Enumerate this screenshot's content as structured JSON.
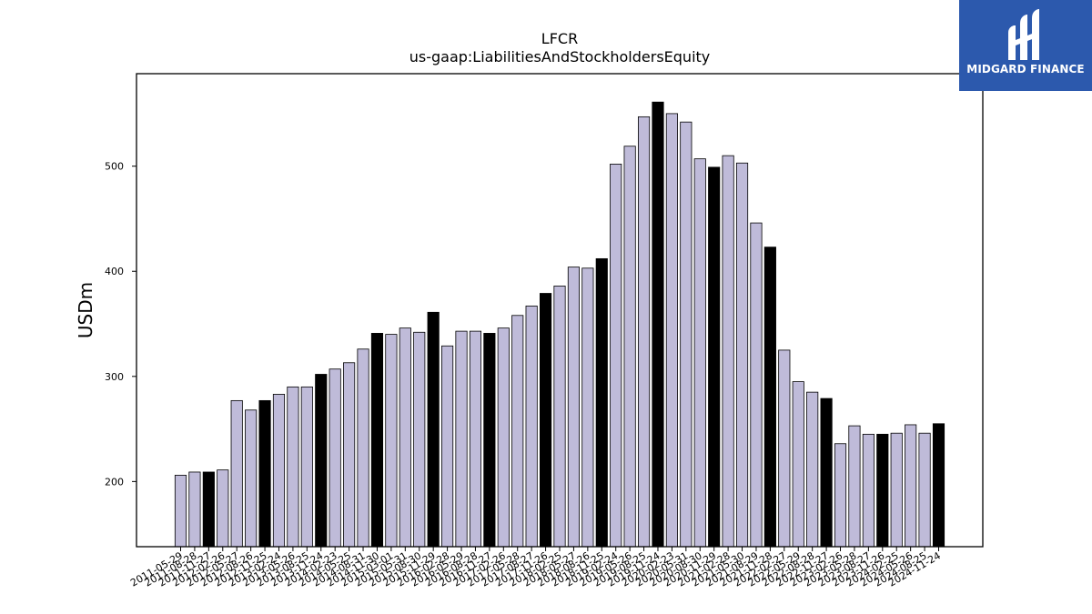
{
  "brand": {
    "name": "MIDGARD FINANCE",
    "logo_icon": "midgard-logo-icon",
    "color": "#2c59ad"
  },
  "chart_data": {
    "type": "bar",
    "title": "LFCR",
    "subtitle": "us-gaap:LiabilitiesAndStockholdersEquity",
    "xlabel": "",
    "ylabel": "USDm",
    "ylim": [
      138,
      588
    ],
    "yticks": [
      200,
      300,
      400,
      500
    ],
    "grid": false,
    "legend": "none",
    "bar_color": "#bfbbd9",
    "highlight_color": "#000000",
    "categories": [
      "2011-05-29",
      "2011-08-28",
      "2011-11-27",
      "2012-02-26",
      "2012-05-27",
      "2012-08-26",
      "2012-11-25",
      "2013-02-24",
      "2013-05-26",
      "2013-08-25",
      "2013-11-24",
      "2014-02-23",
      "2014-05-25",
      "2014-08-31",
      "2014-11-30",
      "2015-03-01",
      "2015-05-31",
      "2015-08-30",
      "2015-11-29",
      "2016-02-28",
      "2016-05-29",
      "2016-08-28",
      "2016-11-27",
      "2017-02-26",
      "2017-05-28",
      "2017-08-27",
      "2017-11-26",
      "2018-02-25",
      "2018-05-27",
      "2018-08-26",
      "2018-11-25",
      "2019-02-24",
      "2019-05-26",
      "2019-08-25",
      "2019-11-24",
      "2020-02-23",
      "2020-05-31",
      "2020-08-30",
      "2020-11-29",
      "2021-02-28",
      "2021-05-30",
      "2021-08-29",
      "2021-11-28",
      "2022-02-27",
      "2022-05-29",
      "2022-08-28",
      "2022-11-27",
      "2023-02-26",
      "2023-05-28",
      "2023-08-27",
      "2023-11-26",
      "2024-02-25",
      "2024-05-26",
      "2024-08-25",
      "2024-11-24"
    ],
    "values": [
      206,
      209,
      209,
      211,
      277,
      268,
      277,
      283,
      290,
      290,
      302,
      307,
      313,
      326,
      341,
      340,
      346,
      342,
      361,
      329,
      343,
      343,
      341,
      346,
      358,
      367,
      379,
      386,
      404,
      403,
      412,
      502,
      519,
      547,
      561,
      550,
      542,
      507,
      499,
      510,
      503,
      446,
      423,
      325,
      295,
      285,
      279,
      236,
      253,
      245,
      245,
      246,
      254,
      246,
      255
    ],
    "highlight": [
      false,
      false,
      true,
      false,
      false,
      false,
      true,
      false,
      false,
      false,
      true,
      false,
      false,
      false,
      true,
      false,
      false,
      false,
      true,
      false,
      false,
      false,
      true,
      false,
      false,
      false,
      true,
      false,
      false,
      false,
      true,
      false,
      false,
      false,
      true,
      false,
      false,
      false,
      true,
      false,
      false,
      false,
      true,
      false,
      false,
      false,
      true,
      false,
      false,
      false,
      true,
      false,
      false,
      false,
      true
    ]
  }
}
